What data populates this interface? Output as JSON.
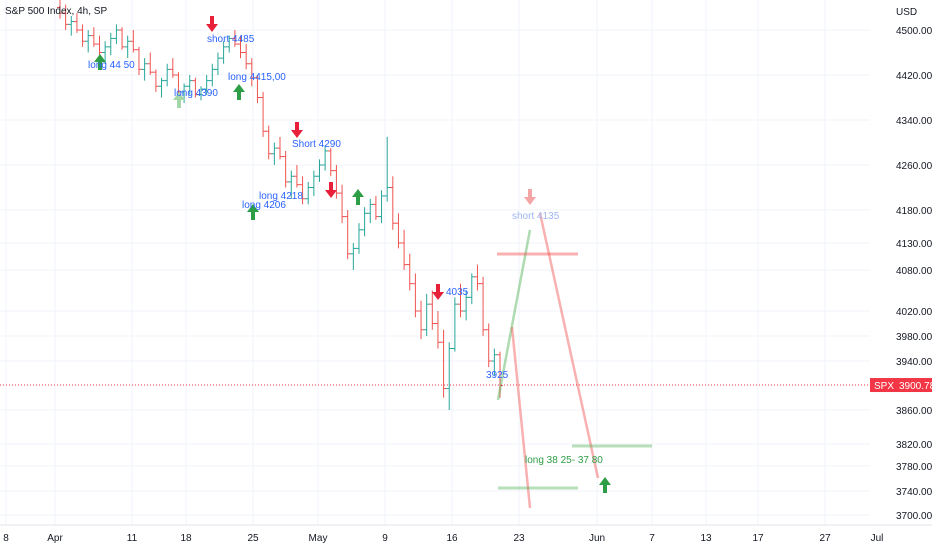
{
  "header": {
    "title": "S&P 500 Index, 4h, SP",
    "currency": "USD"
  },
  "price_badge": {
    "symbol": "SPX",
    "value": "3900.78",
    "color": "#f23645"
  },
  "colors": {
    "up": "#26a69a",
    "down": "#ef5350",
    "arrow_up": "#2e9e46",
    "arrow_down": "#e8203a",
    "label": "#2962ff",
    "label_green": "#2e9e46",
    "grid": "#f0f3fa"
  },
  "chart_data": {
    "type": "ohlc",
    "ylim": [
      3690,
      4540
    ],
    "y_ticks": [
      "4500.00",
      "4420.00",
      "4340.00",
      "4260.00",
      "4180.00",
      "4130.00",
      "4080.00",
      "4020.00",
      "3980.00",
      "3940.00",
      "3860.00",
      "3820.00",
      "3780.00",
      "3740.00",
      "3700.00"
    ],
    "x_ticks": [
      "8",
      "Apr",
      "11",
      "18",
      "25",
      "May",
      "9",
      "16",
      "23",
      "Jun",
      "7",
      "13",
      "17",
      "27",
      "Jul"
    ],
    "last_price": 3900.78,
    "series": [
      {
        "values": [
          [
            4540,
            4560,
            4520,
            4530
          ],
          [
            4530,
            4545,
            4500,
            4510
          ],
          [
            4510,
            4525,
            4490,
            4515
          ],
          [
            4515,
            4530,
            4495,
            4500
          ],
          [
            4500,
            4510,
            4470,
            4480
          ],
          [
            4480,
            4500,
            4460,
            4490
          ],
          [
            4490,
            4505,
            4470,
            4475
          ],
          [
            4475,
            4490,
            4445,
            4460
          ],
          [
            4460,
            4480,
            4440,
            4470
          ],
          [
            4470,
            4495,
            4455,
            4485
          ],
          [
            4485,
            4510,
            4475,
            4500
          ],
          [
            4500,
            4505,
            4465,
            4470
          ],
          [
            4470,
            4490,
            4450,
            4480
          ],
          [
            4480,
            4500,
            4460,
            4465
          ],
          [
            4465,
            4470,
            4420,
            4430
          ],
          [
            4430,
            4450,
            4410,
            4440
          ],
          [
            4440,
            4460,
            4420,
            4425
          ],
          [
            4425,
            4430,
            4390,
            4400
          ],
          [
            4400,
            4415,
            4380,
            4410
          ],
          [
            4410,
            4440,
            4400,
            4430
          ],
          [
            4430,
            4450,
            4415,
            4420
          ],
          [
            4420,
            4425,
            4380,
            4390
          ],
          [
            4390,
            4405,
            4370,
            4400
          ],
          [
            4400,
            4420,
            4385,
            4410
          ],
          [
            4410,
            4415,
            4380,
            4385
          ],
          [
            4385,
            4400,
            4375,
            4395
          ],
          [
            4395,
            4420,
            4385,
            4410
          ],
          [
            4410,
            4440,
            4400,
            4430
          ],
          [
            4430,
            4460,
            4420,
            4450
          ],
          [
            4450,
            4480,
            4440,
            4470
          ],
          [
            4470,
            4490,
            4460,
            4485
          ],
          [
            4485,
            4500,
            4470,
            4475
          ],
          [
            4475,
            4490,
            4450,
            4460
          ],
          [
            4460,
            4475,
            4430,
            4440
          ],
          [
            4440,
            4450,
            4400,
            4415
          ],
          [
            4415,
            4420,
            4370,
            4380
          ],
          [
            4380,
            4390,
            4310,
            4320
          ],
          [
            4320,
            4330,
            4270,
            4280
          ],
          [
            4280,
            4300,
            4260,
            4290
          ],
          [
            4290,
            4310,
            4270,
            4275
          ],
          [
            4275,
            4285,
            4220,
            4230
          ],
          [
            4230,
            4250,
            4200,
            4240
          ],
          [
            4240,
            4260,
            4220,
            4225
          ],
          [
            4225,
            4240,
            4190,
            4200
          ],
          [
            4200,
            4230,
            4190,
            4220
          ],
          [
            4220,
            4250,
            4205,
            4240
          ],
          [
            4240,
            4270,
            4230,
            4260
          ],
          [
            4260,
            4295,
            4250,
            4285
          ],
          [
            4285,
            4290,
            4240,
            4250
          ],
          [
            4250,
            4260,
            4200,
            4210
          ],
          [
            4210,
            4225,
            4160,
            4170
          ],
          [
            4170,
            4180,
            4100,
            4110
          ],
          [
            4110,
            4130,
            4080,
            4120
          ],
          [
            4120,
            4160,
            4110,
            4150
          ],
          [
            4150,
            4185,
            4140,
            4175
          ],
          [
            4175,
            4200,
            4160,
            4190
          ],
          [
            4190,
            4205,
            4165,
            4170
          ],
          [
            4170,
            4215,
            4160,
            4205
          ],
          [
            4205,
            4310,
            4195,
            4220
          ],
          [
            4220,
            4240,
            4150,
            4160
          ],
          [
            4160,
            4175,
            4120,
            4130
          ],
          [
            4130,
            4150,
            4080,
            4090
          ],
          [
            4090,
            4110,
            4050,
            4060
          ],
          [
            4060,
            4075,
            4010,
            4020
          ],
          [
            4020,
            4035,
            3975,
            3990
          ],
          [
            3990,
            4045,
            3980,
            4030
          ],
          [
            4030,
            4050,
            3990,
            4000
          ],
          [
            4000,
            4020,
            3960,
            3970
          ],
          [
            3970,
            3990,
            3880,
            3895
          ],
          [
            3895,
            3970,
            3860,
            3960
          ],
          [
            3960,
            4040,
            3955,
            4030
          ],
          [
            4030,
            4060,
            4010,
            4020
          ],
          [
            4020,
            4050,
            4005,
            4040
          ],
          [
            4040,
            4075,
            4030,
            4070
          ],
          [
            4070,
            4090,
            4050,
            4060
          ],
          [
            4060,
            4070,
            3980,
            3990
          ],
          [
            3990,
            4000,
            3930,
            3940
          ],
          [
            3940,
            3960,
            3915,
            3950
          ],
          [
            3950,
            3955,
            3880,
            3900
          ]
        ]
      }
    ],
    "projection": [
      {
        "label": "short 4135",
        "price": 4135,
        "color": "#ef5350"
      },
      {
        "label": "long  38 25- 37 80",
        "price_high": 3825,
        "price_low": 3780,
        "color": "#2e9e46"
      }
    ]
  },
  "annotations": [
    {
      "text": "short 4485",
      "color": "#2962ff"
    },
    {
      "text": "long  44 50",
      "color": "#2962ff"
    },
    {
      "text": "long 4390",
      "color": "#2962ff"
    },
    {
      "text": "long  4415,00",
      "color": "#2962ff"
    },
    {
      "text": "Short 4290",
      "color": "#2962ff"
    },
    {
      "text": "long  4218",
      "color": "#2962ff"
    },
    {
      "text": "long  4206",
      "color": "#2962ff"
    },
    {
      "text": "4035",
      "color": "#2962ff"
    },
    {
      "text": "3925",
      "color": "#2962ff"
    },
    {
      "text": "short 4135",
      "color": "#9fb6f4"
    },
    {
      "text": "long   38 25- 37 80",
      "color": "#2e9e46"
    }
  ]
}
